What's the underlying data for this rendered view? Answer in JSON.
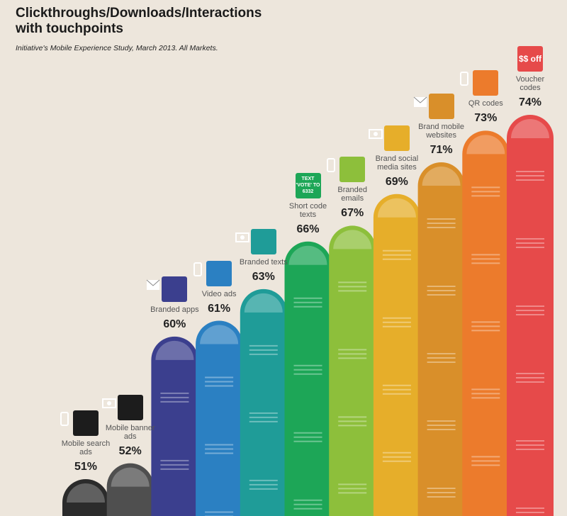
{
  "chart_data": {
    "type": "bar",
    "title": "Clickthroughs/Downloads/Interactions with touchpoints",
    "subtitle": "Initiative's Mobile Experience Study, March 2013. All Markets.",
    "categories": [
      "Mobile search ads",
      "Mobile banner ads",
      "Branded apps",
      "Video ads",
      "Branded texts",
      "Short code texts",
      "Branded emails",
      "Brand social media sites",
      "Brand mobile websites",
      "QR codes",
      "Voucher codes"
    ],
    "values": [
      51,
      52,
      60,
      61,
      63,
      66,
      67,
      69,
      71,
      73,
      74
    ],
    "value_labels": [
      "51%",
      "52%",
      "60%",
      "61%",
      "63%",
      "66%",
      "67%",
      "69%",
      "71%",
      "73%",
      "74%"
    ],
    "colors": [
      "#2b2b2b",
      "#4f4f4f",
      "#3b3f8e",
      "#2b80c2",
      "#1f9c98",
      "#1da657",
      "#8dbf3b",
      "#e6ae2a",
      "#d98f2a",
      "#ec7b2c",
      "#e64a4a"
    ],
    "icon_text": [
      null,
      null,
      null,
      null,
      null,
      "TEXT 'VOTE' TO 6332",
      null,
      null,
      null,
      null,
      "$$ off"
    ]
  }
}
